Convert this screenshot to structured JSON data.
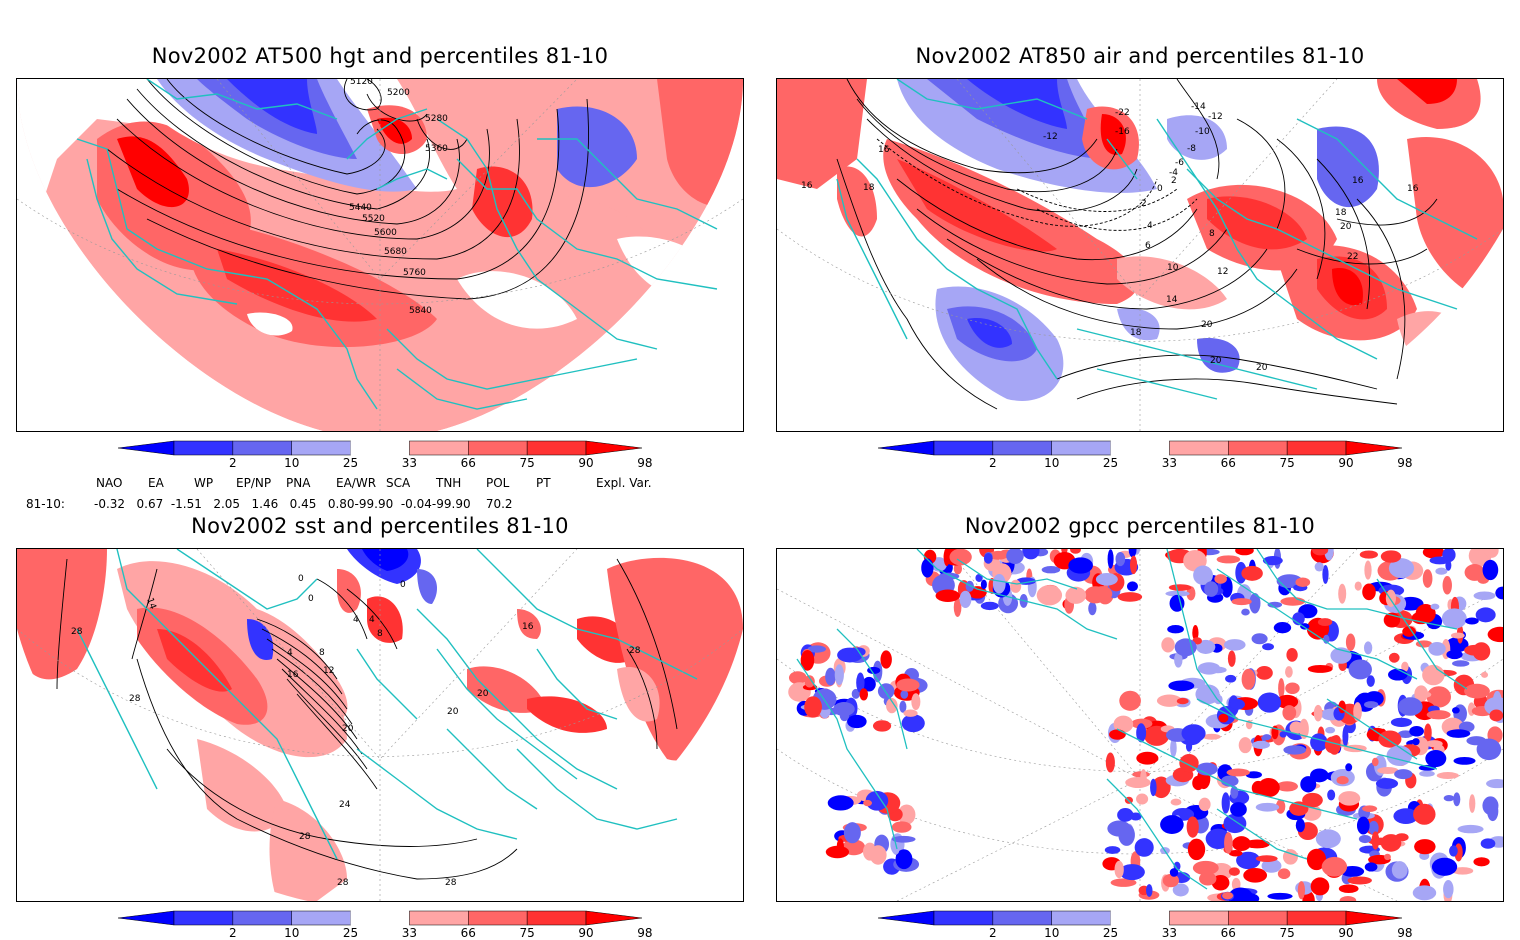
{
  "panels": [
    {
      "id": "p1",
      "title": "Nov2002 AT500 hgt and percentiles 81-10",
      "contour_labels": [
        "5120",
        "5200",
        "5280",
        "5360",
        "5440",
        "5520",
        "5600",
        "5680",
        "5760",
        "5840"
      ]
    },
    {
      "id": "p2",
      "title": "Nov2002 AT850 air and percentiles 81-10",
      "contour_labels": [
        "-12",
        "-12",
        "-14",
        "-10",
        "-16",
        "-22",
        "-8",
        "-6",
        "-4",
        "2",
        "0",
        "2",
        "4",
        "6",
        "8",
        "10",
        "12",
        "14",
        "16",
        "16",
        "16",
        "16",
        "18",
        "18",
        "18",
        "20",
        "20",
        "20",
        "20",
        "22"
      ]
    },
    {
      "id": "p3",
      "title": "Nov2002 sst and percentiles 81-10",
      "contour_labels": [
        "14",
        "0",
        "0",
        "0",
        "4",
        "4",
        "8",
        "4",
        "8",
        "12",
        "16",
        "16",
        "20",
        "20",
        "20",
        "24",
        "28",
        "28",
        "28",
        "28",
        "28",
        "28"
      ]
    },
    {
      "id": "p4",
      "title": "Nov2002 gpcc percentiles 81-10",
      "contour_labels": []
    }
  ],
  "colorbar": {
    "labels": [
      "2",
      "10",
      "25",
      "33",
      "66",
      "75",
      "90",
      "98"
    ],
    "colors": {
      "below2": "#0000ff",
      "b2_10": "#3333ff",
      "b10_25": "#6666f0",
      "b25_33": "#a6a6f5",
      "b33_66": "#ffffff",
      "b66_75": "#ffa5a5",
      "b75_90": "#ff6666",
      "b90_98": "#ff3333",
      "above98": "#ff0000"
    }
  },
  "indices": {
    "row_label": "81-10:",
    "names": [
      "NAO",
      "EA",
      "WP",
      "EP/NP",
      "PNA",
      "EA/WR",
      "SCA",
      "TNH",
      "POL",
      "PT",
      "Expl. Var."
    ],
    "values_text": "-0.32   0.67  -1.51   2.05   1.46   0.45   0.80-99.90  -0.04-99.90    70.2"
  },
  "map_colors": {
    "coast": "#20c0c0",
    "contour": "#000000",
    "grid": "#999999"
  }
}
